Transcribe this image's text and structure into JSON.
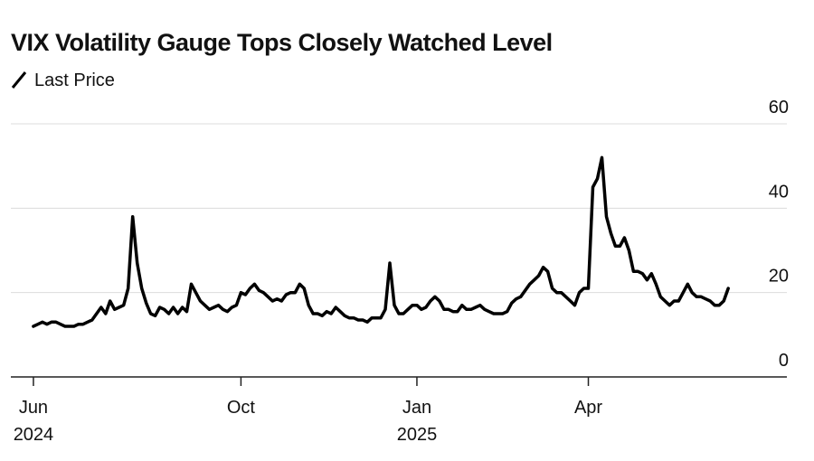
{
  "chart_data": {
    "type": "line",
    "title": "VIX Volatility Gauge Tops Closely Watched Level",
    "series": [
      {
        "name": "Last Price",
        "color": "#000000",
        "values": [
          12,
          12.5,
          13,
          12.5,
          13,
          13,
          12.5,
          12,
          12,
          12,
          12.5,
          12.5,
          13,
          13.5,
          15,
          16.5,
          15,
          18,
          16,
          16.5,
          17,
          21,
          38,
          27,
          21,
          17.5,
          15,
          14.5,
          16.5,
          16,
          15,
          16.5,
          15,
          16.5,
          15.5,
          22,
          20,
          18,
          17,
          16,
          16.5,
          17,
          16,
          15.5,
          16.5,
          17,
          20,
          19.5,
          21,
          22,
          20.5,
          20,
          19,
          18,
          18.5,
          18,
          19.5,
          20,
          20,
          22,
          21,
          17,
          15,
          15,
          14.5,
          15.5,
          15,
          16.5,
          15.5,
          14.5,
          14,
          14,
          13.5,
          13.5,
          13,
          14,
          14,
          14,
          16,
          27,
          17,
          15,
          15,
          16,
          17,
          17,
          16,
          16.5,
          18,
          19,
          18,
          16,
          16,
          15.5,
          15.5,
          17,
          16,
          16,
          16.5,
          17,
          16,
          15.5,
          15,
          15,
          15,
          15.5,
          17.5,
          18.5,
          19,
          20.5,
          22,
          23,
          24,
          26,
          25,
          21,
          20,
          20,
          19,
          18,
          17,
          20,
          21,
          21,
          45,
          47,
          52,
          38,
          34,
          31,
          31,
          33,
          30,
          25,
          25,
          24.5,
          23,
          24.5,
          22,
          19,
          18,
          17,
          18,
          18,
          20,
          22,
          20,
          19,
          19,
          18.5,
          18,
          17,
          17,
          18,
          21
        ]
      }
    ],
    "xlim": [
      -5,
      167
    ],
    "xticks": [
      {
        "value": 0,
        "label": "Jun\n2024"
      },
      {
        "value": 46,
        "label": "Oct"
      },
      {
        "value": 85,
        "label": "Jan\n2025"
      },
      {
        "value": 123,
        "label": "Apr"
      }
    ],
    "ylim": [
      0,
      60
    ],
    "yticks": [
      0,
      20,
      40,
      60
    ],
    "grid": true
  }
}
